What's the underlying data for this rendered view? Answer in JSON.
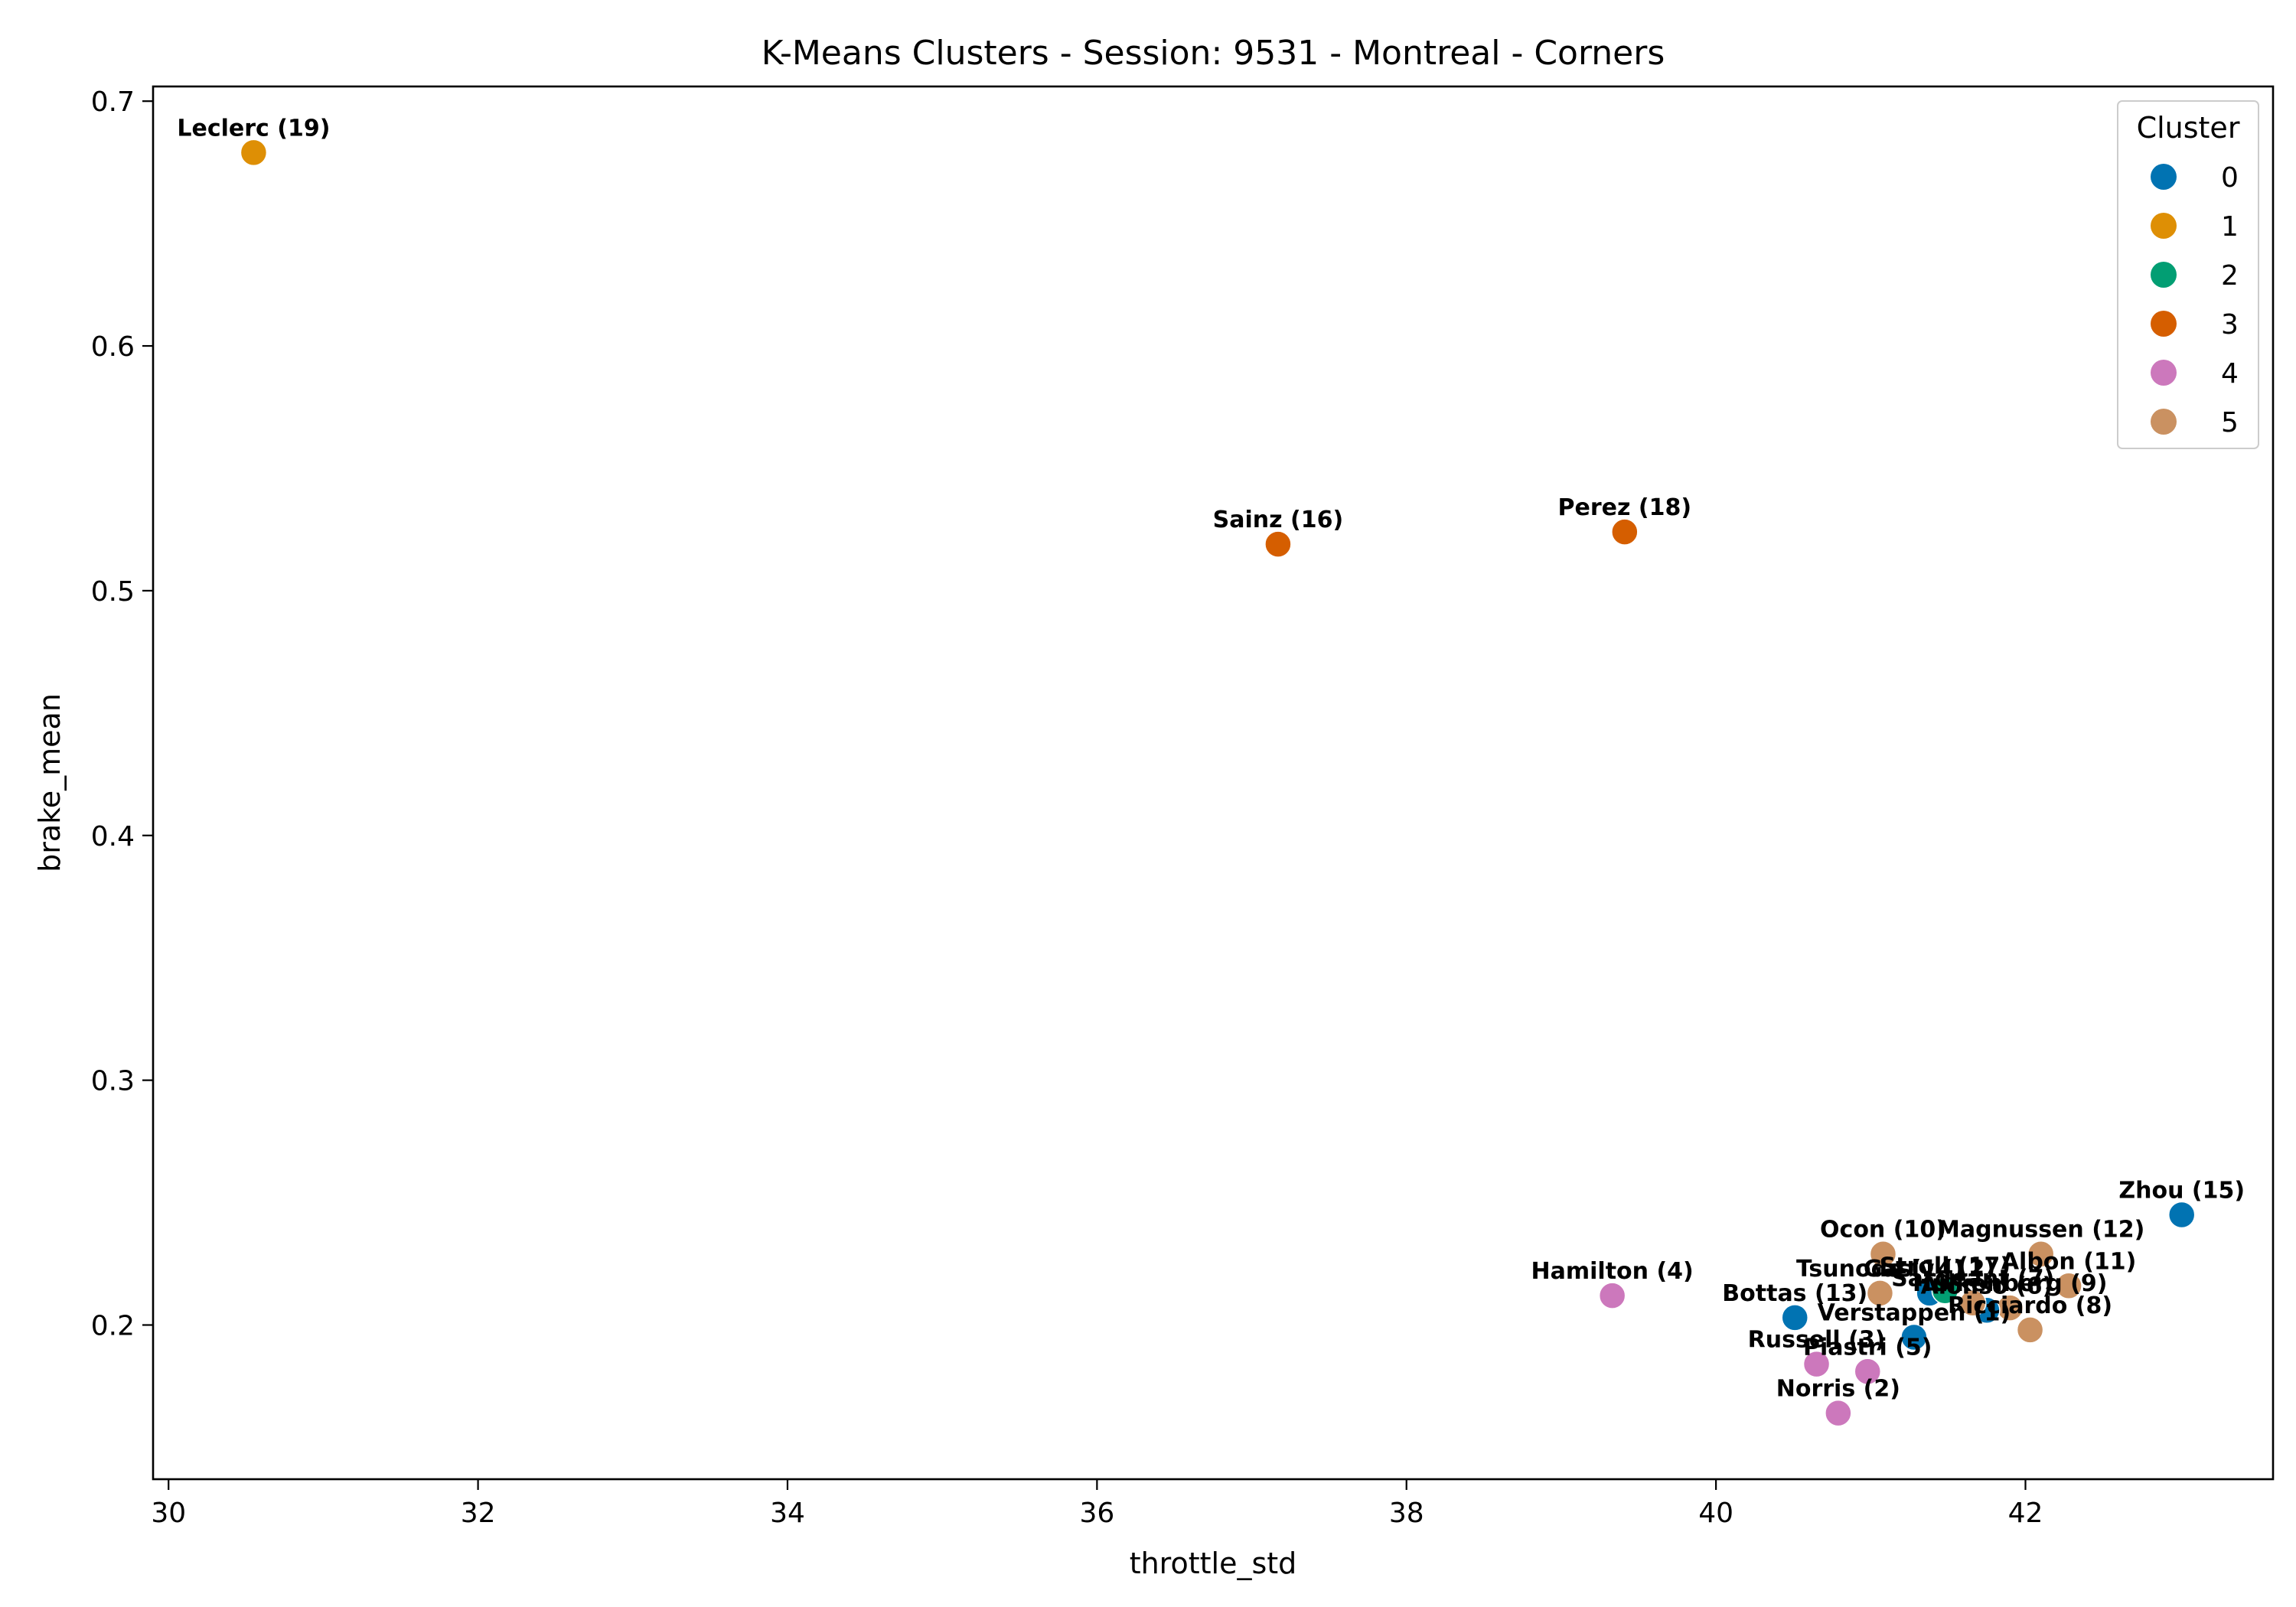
{
  "chart_data": {
    "type": "scatter",
    "title": "K-Means Clusters - Session: 9531 - Montreal - Corners",
    "xlabel": "throttle_std",
    "ylabel": "brake_mean",
    "xlim": [
      29.9,
      43.6
    ],
    "ylim": [
      0.137,
      0.706
    ],
    "xticks": [
      30,
      32,
      34,
      36,
      38,
      40,
      42
    ],
    "yticks": [
      0.2,
      0.3,
      0.4,
      0.5,
      0.6,
      0.7
    ],
    "ytick_labels": [
      "0.2",
      "0.3",
      "0.4",
      "0.5",
      "0.6",
      "0.7"
    ],
    "grid": false,
    "legend": {
      "title": "Cluster",
      "placement": "top-right",
      "entries": [
        {
          "label": "0",
          "color": "#0173b2"
        },
        {
          "label": "1",
          "color": "#de8f05"
        },
        {
          "label": "2",
          "color": "#029e73"
        },
        {
          "label": "3",
          "color": "#d55e00"
        },
        {
          "label": "4",
          "color": "#cc78bc"
        },
        {
          "label": "5",
          "color": "#ca9161"
        }
      ]
    },
    "points": [
      {
        "label": "Leclerc (19)",
        "x": 30.55,
        "y": 0.679,
        "cluster": 1
      },
      {
        "label": "Sainz (16)",
        "x": 37.17,
        "y": 0.519,
        "cluster": 3
      },
      {
        "label": "Perez (18)",
        "x": 39.41,
        "y": 0.524,
        "cluster": 3
      },
      {
        "label": "Zhou (15)",
        "x": 43.01,
        "y": 0.245,
        "cluster": 0
      },
      {
        "label": "Magnussen (12)",
        "x": 42.1,
        "y": 0.229,
        "cluster": 5
      },
      {
        "label": "Ocon (10)",
        "x": 41.08,
        "y": 0.229,
        "cluster": 5
      },
      {
        "label": "Albon (11)",
        "x": 42.28,
        "y": 0.216,
        "cluster": 5
      },
      {
        "label": "Tsunoda (14)",
        "x": 41.06,
        "y": 0.213,
        "cluster": 5
      },
      {
        "label": "Gasly (12)",
        "x": 41.38,
        "y": 0.213,
        "cluster": 0
      },
      {
        "label": "Stroll (17)",
        "x": 41.48,
        "y": 0.214,
        "cluster": 2
      },
      {
        "label": "Hulkenberg (9)",
        "x": 41.9,
        "y": 0.207,
        "cluster": 5
      },
      {
        "label": "Alonso (6)",
        "x": 41.75,
        "y": 0.206,
        "cluster": 0
      },
      {
        "label": "Sargeant (7)",
        "x": 41.66,
        "y": 0.209,
        "cluster": 5
      },
      {
        "label": "Ricciardo (8)",
        "x": 42.03,
        "y": 0.198,
        "cluster": 5
      },
      {
        "label": "Bottas (13)",
        "x": 40.51,
        "y": 0.203,
        "cluster": 0
      },
      {
        "label": "Verstappen (1)",
        "x": 41.28,
        "y": 0.195,
        "cluster": 0
      },
      {
        "label": "Hamilton (4)",
        "x": 39.33,
        "y": 0.212,
        "cluster": 4
      },
      {
        "label": "Russell (3)",
        "x": 40.65,
        "y": 0.184,
        "cluster": 4
      },
      {
        "label": "Piastri (5)",
        "x": 40.98,
        "y": 0.181,
        "cluster": 4
      },
      {
        "label": "Norris (2)",
        "x": 40.79,
        "y": 0.164,
        "cluster": 4
      }
    ]
  }
}
